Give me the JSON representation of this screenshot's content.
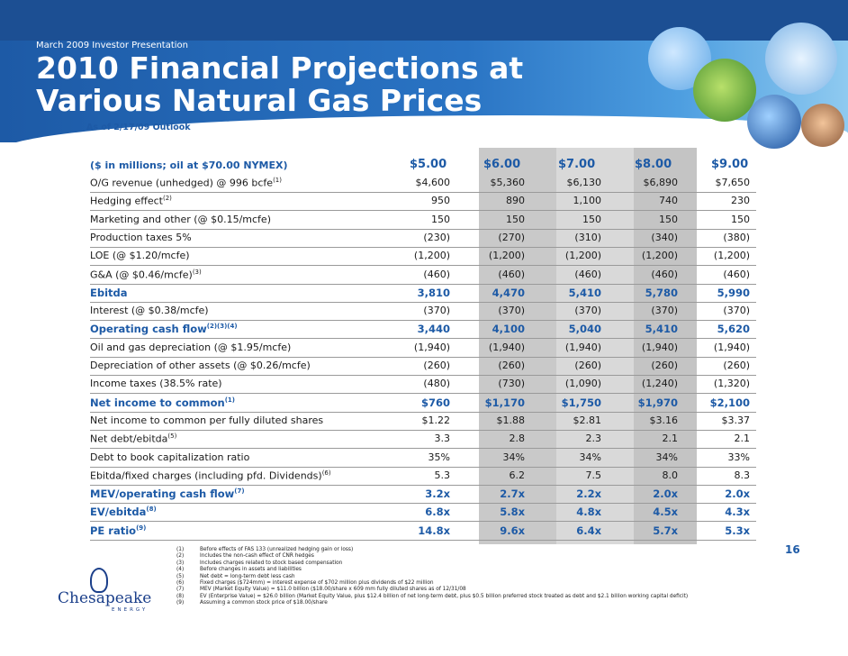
{
  "header": {
    "preheader": "March 2009 Investor Presentation",
    "title_line1": "2010 Financial Projections at",
    "title_line2": "Various Natural Gas Prices",
    "subtitle": "As of 2/17/09 Outlook"
  },
  "table": {
    "unit_label": "($ in millions; oil at $70.00 NYMEX)",
    "price_columns": [
      "$5.00",
      "$6.00",
      "$7.00",
      "$8.00",
      "$9.00"
    ],
    "rows": [
      {
        "label": "O/G revenue (unhedged) @ 996 bcfe",
        "note": "(1)",
        "values": [
          "$4,600",
          "$5,360",
          "$6,130",
          "$6,890",
          "$7,650"
        ]
      },
      {
        "label": "Hedging effect",
        "note": "(2)",
        "values": [
          "950",
          "890",
          "1,100",
          "740",
          "230"
        ]
      },
      {
        "label": "Marketing and other (@ $0.15/mcfe)",
        "note": "",
        "values": [
          "150",
          "150",
          "150",
          "150",
          "150"
        ]
      },
      {
        "label": "Production taxes 5%",
        "note": "",
        "values": [
          "(230)",
          "(270)",
          "(310)",
          "(340)",
          "(380)"
        ]
      },
      {
        "label": "LOE (@ $1.20/mcfe)",
        "note": "",
        "values": [
          "(1,200)",
          "(1,200)",
          "(1,200)",
          "(1,200)",
          "(1,200)"
        ]
      },
      {
        "label": "G&A (@ $0.46/mcfe)",
        "note": "(3)",
        "values": [
          "(460)",
          "(460)",
          "(460)",
          "(460)",
          "(460)"
        ]
      },
      {
        "label": "Ebitda",
        "note": "",
        "bold": true,
        "values": [
          "3,810",
          "4,470",
          "5,410",
          "5,780",
          "5,990"
        ]
      },
      {
        "label": "Interest (@ $0.38/mcfe)",
        "note": "",
        "values": [
          "(370)",
          "(370)",
          "(370)",
          "(370)",
          "(370)"
        ]
      },
      {
        "label": "Operating cash flow",
        "note": "(2)(3)(4)",
        "bold": true,
        "values": [
          "3,440",
          "4,100",
          "5,040",
          "5,410",
          "5,620"
        ]
      },
      {
        "label": "Oil and gas depreciation (@ $1.95/mcfe)",
        "note": "",
        "values": [
          "(1,940)",
          "(1,940)",
          "(1,940)",
          "(1,940)",
          "(1,940)"
        ]
      },
      {
        "label": "Depreciation of other assets (@ $0.26/mcfe)",
        "note": "",
        "values": [
          "(260)",
          "(260)",
          "(260)",
          "(260)",
          "(260)"
        ]
      },
      {
        "label": "Income taxes (38.5% rate)",
        "note": "",
        "values": [
          "(480)",
          "(730)",
          "(1,090)",
          "(1,240)",
          "(1,320)"
        ]
      },
      {
        "label": "Net income to common",
        "note": "(1)",
        "bold": true,
        "values": [
          "$760",
          "$1,170",
          "$1,750",
          "$1,970",
          "$2,100"
        ]
      },
      {
        "label": "Net income to common per fully diluted shares",
        "note": "",
        "values": [
          "$1.22",
          "$1.88",
          "$2.81",
          "$3.16",
          "$3.37"
        ]
      },
      {
        "label": "Net debt/ebitda",
        "note": "(5)",
        "values": [
          "3.3",
          "2.8",
          "2.3",
          "2.1",
          "2.1"
        ]
      },
      {
        "label": "Debt to book capitalization ratio",
        "note": "",
        "values": [
          "35%",
          "34%",
          "34%",
          "34%",
          "33%"
        ]
      },
      {
        "label": "Ebitda/fixed charges (including pfd. Dividends)",
        "note": "(6)",
        "values": [
          "5.3",
          "6.2",
          "7.5",
          "8.0",
          "8.3"
        ]
      },
      {
        "label": "MEV/operating cash flow",
        "note": "(7)",
        "bold": true,
        "values": [
          "3.2x",
          "2.7x",
          "2.2x",
          "2.0x",
          "2.0x"
        ]
      },
      {
        "label": "EV/ebitda",
        "note": "(8)",
        "bold": true,
        "values": [
          "6.8x",
          "5.8x",
          "4.8x",
          "4.5x",
          "4.3x"
        ]
      },
      {
        "label": "PE ratio",
        "note": "(9)",
        "bold": true,
        "values": [
          "14.8x",
          "9.6x",
          "6.4x",
          "5.7x",
          "5.3x"
        ]
      }
    ]
  },
  "page_number": "16",
  "logo": {
    "name": "Chesapeake",
    "sub": "ENERGY"
  },
  "footnotes": [
    {
      "key": "(1)",
      "text": "Before effects of FAS 133 (unrealized hedging gain or loss)"
    },
    {
      "key": "(2)",
      "text": "Includes the non-cash effect of CNR hedges"
    },
    {
      "key": "(3)",
      "text": "Includes charges related to stock based compensation"
    },
    {
      "key": "(4)",
      "text": "Before changes in assets and liabilities"
    },
    {
      "key": "(5)",
      "text": "Net debt = long-term debt less cash"
    },
    {
      "key": "(6)",
      "text": "Fixed charges ($724mm) = interest expense of $702 million plus dividends of $22 million"
    },
    {
      "key": "(7)",
      "text": "MEV (Market Equity Value) = $11.0 billion ($18.00/share x 609 mm fully diluted shares as of 12/31/08"
    },
    {
      "key": "(8)",
      "text": "EV (Enterprise Value) = $26.0 billion (Market Equity Value, plus $12.4 billion of net long-term debt, plus $0.5 billion preferred stock treated as debt and $2.1 billion working capital deficit)"
    },
    {
      "key": "(9)",
      "text": "Assuming a common stock price of $18.00/share"
    }
  ],
  "colors": {
    "brand_blue": "#1d5aa6",
    "banner_dark": "#1c4f93",
    "shade": "#d9d9d9"
  }
}
